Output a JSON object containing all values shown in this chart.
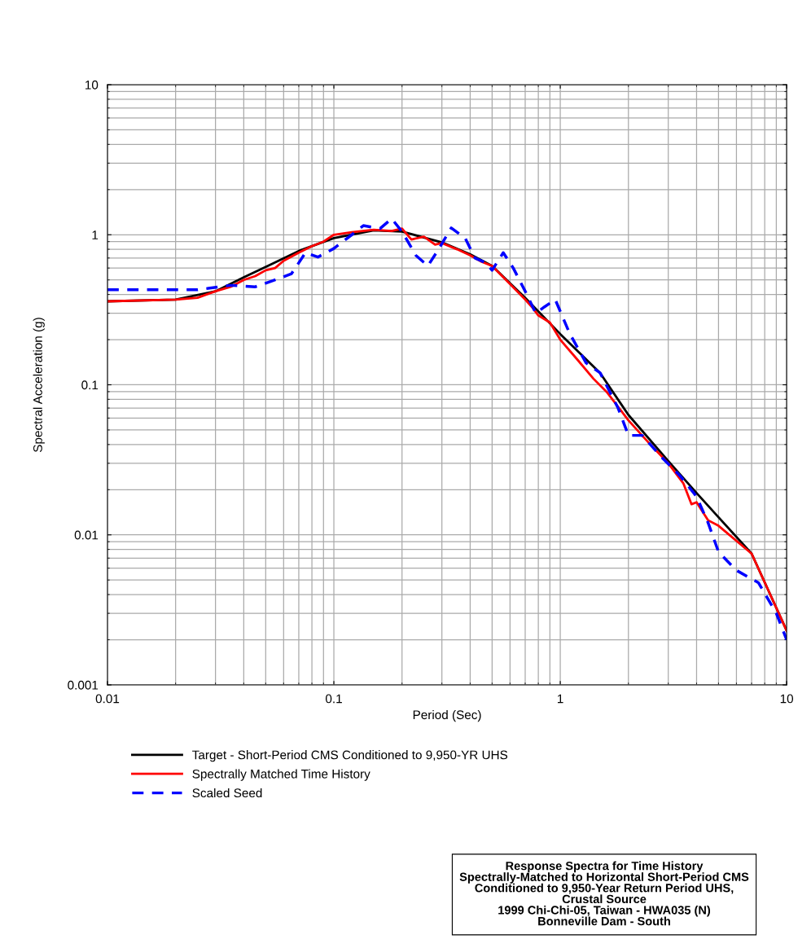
{
  "chart_data": {
    "type": "line",
    "xlabel": "Period (Sec)",
    "ylabel": "Spectral Acceleration (g)",
    "log": "xy",
    "xlim": [
      0.01,
      10
    ],
    "ylim": [
      0.001,
      10
    ],
    "xticks": [
      0.01,
      0.1,
      1,
      10
    ],
    "yticks": [
      0.001,
      0.01,
      0.1,
      1,
      10
    ],
    "grid": true,
    "legend": "bottom",
    "marker": "none",
    "series": [
      {
        "name": "Target - Short-Period CMS Conditioned to 9,950-YR UHS",
        "color": "#000000",
        "line_style": "solid",
        "x": [
          0.01,
          0.02,
          0.03,
          0.04,
          0.05,
          0.07,
          0.1,
          0.15,
          0.2,
          0.3,
          0.4,
          0.5,
          0.7,
          1,
          1.5,
          2,
          3,
          4,
          5,
          7,
          10
        ],
        "values": [
          0.36,
          0.37,
          0.42,
          0.52,
          0.61,
          0.78,
          0.95,
          1.07,
          1.05,
          0.89,
          0.74,
          0.62,
          0.38,
          0.218,
          0.12,
          0.063,
          0.031,
          0.019,
          0.0131,
          0.0075,
          0.0023
        ]
      },
      {
        "name": "Spectrally Matched Time History",
        "color": "#ff0000",
        "line_style": "solid",
        "x": [
          0.01,
          0.02,
          0.025,
          0.03,
          0.035,
          0.04,
          0.045,
          0.05,
          0.055,
          0.06,
          0.07,
          0.08,
          0.09,
          0.1,
          0.12,
          0.15,
          0.18,
          0.2,
          0.22,
          0.25,
          0.28,
          0.3,
          0.35,
          0.4,
          0.45,
          0.5,
          0.6,
          0.7,
          0.75,
          0.8,
          0.9,
          1,
          1.2,
          1.4,
          1.6,
          2,
          2.5,
          3,
          3.5,
          3.8,
          4,
          4.5,
          5,
          7,
          10
        ],
        "values": [
          0.36,
          0.37,
          0.38,
          0.42,
          0.45,
          0.5,
          0.53,
          0.58,
          0.6,
          0.67,
          0.76,
          0.84,
          0.9,
          1.0,
          1.04,
          1.08,
          1.06,
          1.1,
          0.93,
          0.97,
          0.86,
          0.88,
          0.8,
          0.73,
          0.66,
          0.62,
          0.47,
          0.37,
          0.33,
          0.29,
          0.26,
          0.2,
          0.145,
          0.11,
          0.09,
          0.058,
          0.04,
          0.03,
          0.022,
          0.016,
          0.0165,
          0.0125,
          0.0115,
          0.0075,
          0.0023
        ]
      },
      {
        "name": "Scaled Seed",
        "color": "#0000ff",
        "line_style": "dashed",
        "x": [
          0.01,
          0.025,
          0.035,
          0.045,
          0.055,
          0.065,
          0.075,
          0.085,
          0.1,
          0.12,
          0.135,
          0.16,
          0.18,
          0.2,
          0.23,
          0.26,
          0.29,
          0.33,
          0.38,
          0.42,
          0.47,
          0.5,
          0.56,
          0.62,
          0.7,
          0.78,
          0.85,
          0.95,
          1.1,
          1.3,
          1.5,
          1.8,
          2.0,
          2.3,
          2.8,
          3.4,
          4,
          4.5,
          5,
          6,
          7.5,
          9,
          10
        ],
        "values": [
          0.43,
          0.43,
          0.46,
          0.45,
          0.5,
          0.55,
          0.76,
          0.71,
          0.81,
          1.0,
          1.15,
          1.1,
          1.28,
          1.05,
          0.73,
          0.62,
          0.8,
          1.11,
          0.95,
          0.7,
          0.65,
          0.58,
          0.76,
          0.6,
          0.42,
          0.3,
          0.33,
          0.37,
          0.22,
          0.14,
          0.12,
          0.07,
          0.046,
          0.046,
          0.033,
          0.0245,
          0.018,
          0.012,
          0.0077,
          0.0058,
          0.0048,
          0.003,
          0.002
        ]
      }
    ],
    "annotations": [
      "Response Spectra for Time History\nSpectrally-Matched to Horizontal Short-Period CMS\nConditioned to 9,950-Year Return Period UHS,\nCrustal Source\n1999 Chi-Chi-05, Taiwan - HWA035 (N)\nBonneville Dam - South"
    ]
  }
}
